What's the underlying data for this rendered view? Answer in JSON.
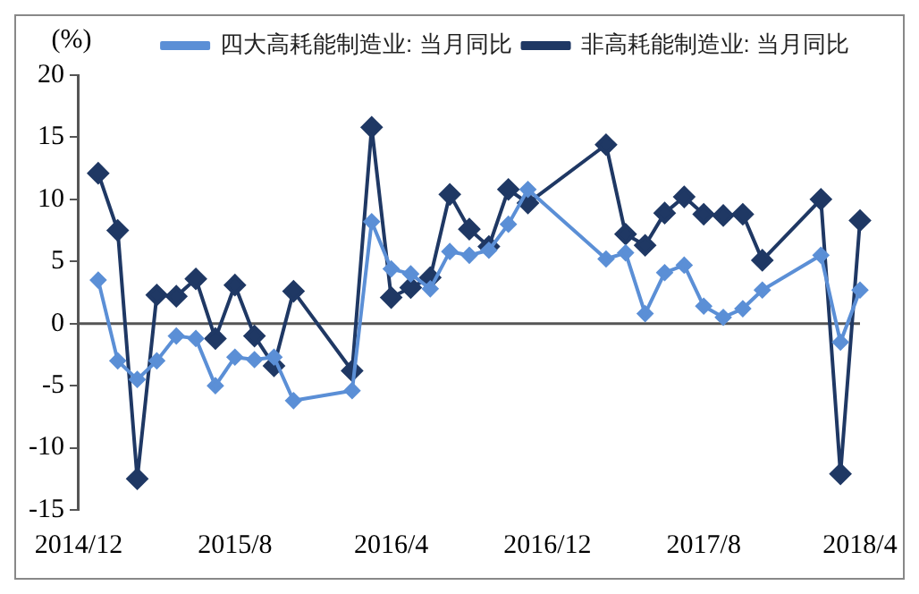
{
  "chart_data": {
    "type": "line",
    "ylabel": "(%)",
    "categories": [
      "2014/12",
      null,
      null,
      null,
      null,
      null,
      null,
      null,
      "2015/8",
      null,
      null,
      null,
      null,
      null,
      null,
      null,
      "2016/4",
      null,
      null,
      null,
      null,
      null,
      null,
      null,
      "2016/12",
      null,
      null,
      null,
      null,
      null,
      null,
      null,
      "2017/8",
      null,
      null,
      null,
      null,
      null,
      null,
      null,
      "2018/4"
    ],
    "series": [
      {
        "name": "四大高耗能制造业: 当月同比",
        "color": "#5b8fd6",
        "values": [
          null,
          3.5,
          -3.0,
          -4.5,
          -3.0,
          -1.0,
          -1.2,
          -5.0,
          -2.7,
          -2.9,
          -2.7,
          -6.2,
          null,
          null,
          -5.4,
          8.2,
          4.4,
          4.0,
          2.8,
          5.8,
          5.5,
          5.9,
          8.0,
          10.8,
          null,
          null,
          null,
          5.2,
          5.7,
          0.8,
          4.1,
          4.7,
          1.4,
          0.5,
          1.2,
          2.7,
          null,
          null,
          5.5,
          -1.5,
          2.7
        ]
      },
      {
        "name": "非高耗能制造业: 当月同比",
        "color": "#1f3864",
        "values": [
          null,
          12.1,
          7.5,
          -12.5,
          2.3,
          2.2,
          3.6,
          -1.2,
          3.1,
          -1.0,
          -3.4,
          2.6,
          null,
          null,
          -3.8,
          15.8,
          2.1,
          2.9,
          3.7,
          10.4,
          7.6,
          6.2,
          10.8,
          9.7,
          null,
          null,
          null,
          14.4,
          7.2,
          6.3,
          8.9,
          10.2,
          8.8,
          8.7,
          8.8,
          5.1,
          null,
          null,
          10.0,
          -12.1,
          8.3
        ]
      }
    ],
    "ylim": [
      -15,
      20
    ],
    "yticks": [
      -15,
      -10,
      -5,
      0,
      5,
      10,
      15,
      20
    ],
    "ref_lines": [
      {
        "axis": "y",
        "value": 0,
        "color": "#555555"
      }
    ],
    "grid": false,
    "legend": "top",
    "marker": "diamond",
    "line_style": "solid"
  }
}
